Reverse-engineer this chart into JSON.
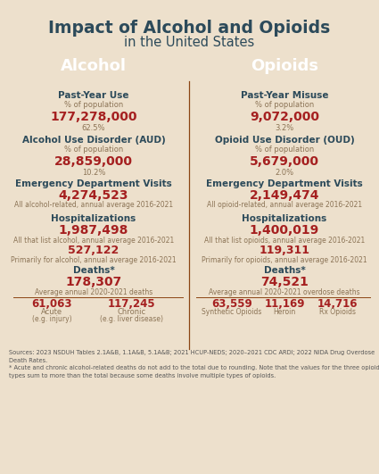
{
  "title_line1": "Impact of Alcohol and Opioids",
  "title_line2": "in the United States",
  "bg_color": "#EDE0CC",
  "title_color": "#2C4A5A",
  "header_bg": "#2C6E7A",
  "header_text": "#FFFFFF",
  "red_color": "#A52020",
  "sub_label_color": "#8B7355",
  "divider_color": "#8B4513",
  "alc_header": "Alcohol",
  "opi_header": "Opioids",
  "alc_stat1_label": "Past-Year Use",
  "alc_stat1_sub": "% of population",
  "alc_stat1_val": "177,278,000",
  "alc_stat1_pct": "62.5%",
  "alc_stat2_label": "Alcohol Use Disorder (AUD)",
  "alc_stat2_sub": "% of population",
  "alc_stat2_val": "28,859,000",
  "alc_stat2_pct": "10.2%",
  "alc_stat3_label": "Emergency Department Visits",
  "alc_stat3_val": "4,274,523",
  "alc_stat3_sub": "All alcohol-related, annual average 2016-2021",
  "alc_stat4_label": "Hospitalizations",
  "alc_stat4_val1": "1,987,498",
  "alc_stat4_sub1": "All that list alcohol, annual average 2016-2021",
  "alc_stat4_val2": "527,122",
  "alc_stat4_sub2": "Primarily for alcohol, annual average 2016-2021",
  "alc_stat5_label": "Deaths",
  "alc_stat5_star": "*",
  "alc_stat5_val": "178,307",
  "alc_stat5_sub": "Average annual 2020-2021 deaths",
  "alc_sub1_val": "61,063",
  "alc_sub1_label": "Acute",
  "alc_sub1_sublabel": "(e.g. injury)",
  "alc_sub2_val": "117,245",
  "alc_sub2_label": "Chronic",
  "alc_sub2_sublabel": "(e.g. liver disease)",
  "opi_stat1_label": "Past-Year Misuse",
  "opi_stat1_sub": "% of population",
  "opi_stat1_val": "9,072,000",
  "opi_stat1_pct": "3.2%",
  "opi_stat2_label": "Opioid Use Disorder (OUD)",
  "opi_stat2_sub": "% of population",
  "opi_stat2_val": "5,679,000",
  "opi_stat2_pct": "2.0%",
  "opi_stat3_label": "Emergency Department Visits",
  "opi_stat3_val": "2,149,474",
  "opi_stat3_sub": "All opioid-related, annual average 2016-2021",
  "opi_stat4_label": "Hospitalizations",
  "opi_stat4_val1": "1,400,019",
  "opi_stat4_sub1": "All that list opioids, annual average 2016-2021",
  "opi_stat4_val2": "119,311",
  "opi_stat4_sub2": "Primarily for opioids, annual average 2016-2021",
  "opi_stat5_label": "Deaths",
  "opi_stat5_star": "*",
  "opi_stat5_val": "74,521",
  "opi_stat5_sub": "Average annual 2020-2021 overdose deaths",
  "opi_sub1_val": "63,559",
  "opi_sub1_label": "Synthetic Opioids",
  "opi_sub2_val": "11,169",
  "opi_sub2_label": "Heroin",
  "opi_sub3_val": "14,716",
  "opi_sub3_label": "Rx Opioids",
  "footnote_line1": "Sources: 2023 NSDUH Tables 2.1A&B, 1.1A&B, 5.1A&B; 2021 HCUP-NEDS; 2020–2021 CDC ARDI; 2022 NIDA Drug Overdose",
  "footnote_line2": "Death Rates.",
  "footnote_line3": "* Acute and chronic alcohol-related deaths do not add to the total due to rounding. Note that the values for the three opioid",
  "footnote_line4": "types sum to more than the total because some deaths involve multiple types of opioids."
}
